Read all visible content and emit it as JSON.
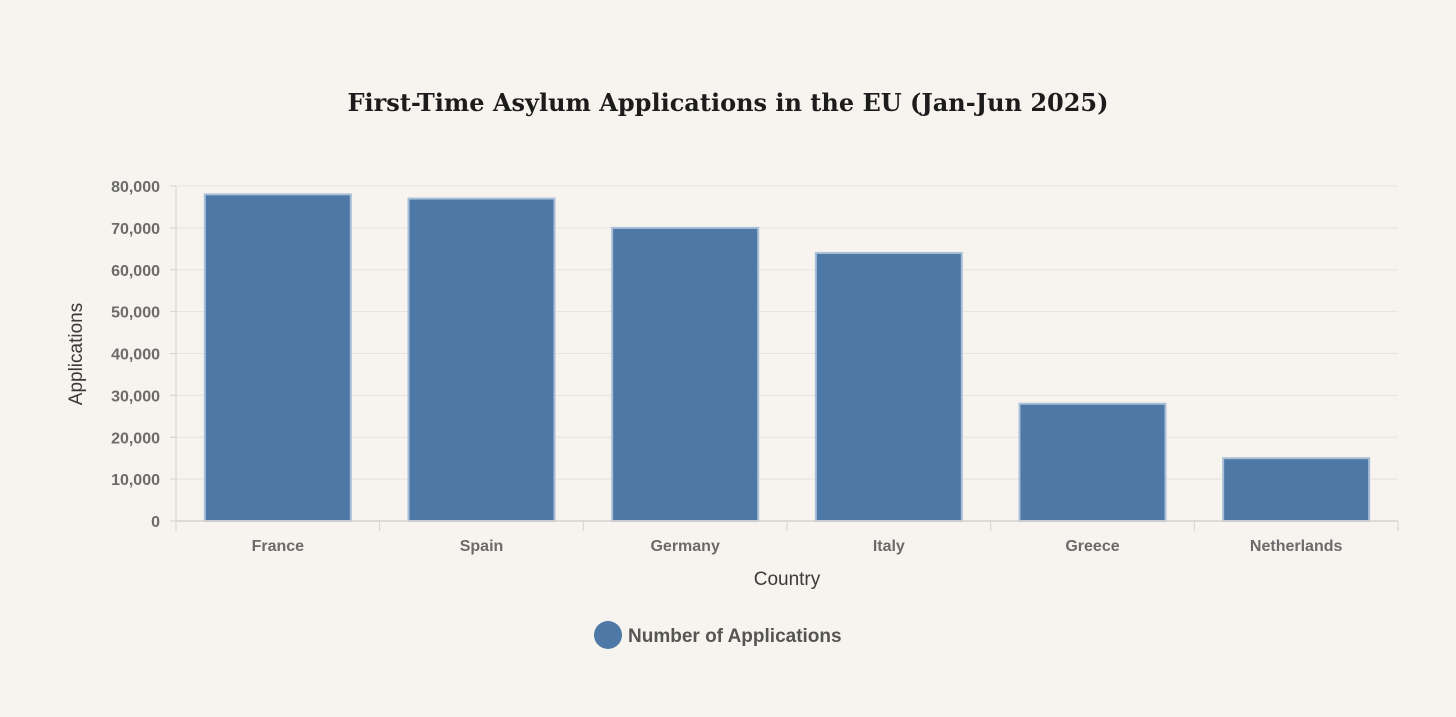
{
  "chart_data": {
    "type": "bar",
    "title": "First-Time Asylum Applications in the EU (Jan-Jun 2025)",
    "xlabel": "Country",
    "ylabel": "Applications",
    "categories": [
      "France",
      "Spain",
      "Germany",
      "Italy",
      "Greece",
      "Netherlands"
    ],
    "series": [
      {
        "name": "Number of Applications",
        "values": [
          78000,
          77000,
          70000,
          64000,
          28000,
          15000
        ]
      }
    ],
    "ylim": [
      0,
      80000
    ],
    "yticks": [
      0,
      10000,
      20000,
      30000,
      40000,
      50000,
      60000,
      70000,
      80000
    ],
    "ytick_labels": [
      "0",
      "10,000",
      "20,000",
      "30,000",
      "40,000",
      "50,000",
      "60,000",
      "70,000",
      "80,000"
    ],
    "grid": true,
    "legend_position": "bottom-center",
    "colors": {
      "bar": "#4e78a6",
      "bar_edge": "#a9bfd8",
      "grid": "#e6e2dc",
      "axis": "#d6d2cc",
      "background": "#f7f4f0"
    }
  }
}
